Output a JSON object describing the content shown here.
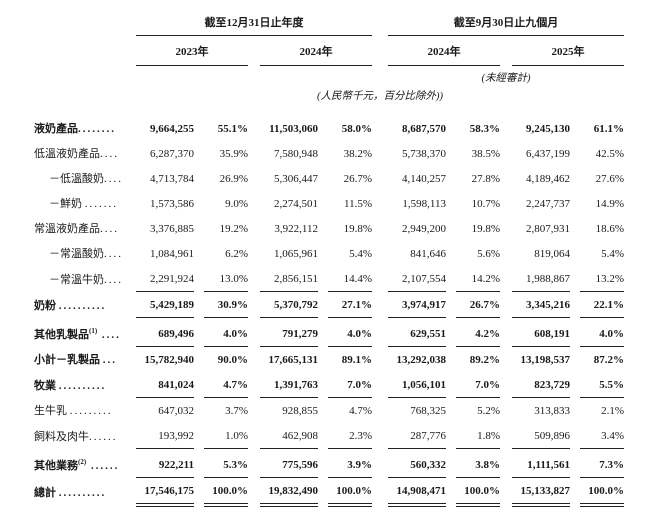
{
  "header": {
    "group1": "截至12月31日止年度",
    "group2": "截至9月30日止九個月",
    "years": [
      "2023年",
      "2024年",
      "2024年",
      "2025年"
    ],
    "note_unaudited": "(未經審計)",
    "note_units": "(人民幣千元，百分比除外))"
  },
  "rows": [
    {
      "label": "液奶產品",
      "dots": "........",
      "bold": true,
      "values": [
        "9,664,255",
        "55.1%",
        "11,503,060",
        "58.0%",
        "8,687,570",
        "58.3%",
        "9,245,130",
        "61.1%"
      ]
    },
    {
      "label": "低溫液奶產品",
      "dots": "....",
      "values": [
        "6,287,370",
        "35.9%",
        "7,580,948",
        "38.2%",
        "5,738,370",
        "38.5%",
        "6,437,199",
        "42.5%"
      ]
    },
    {
      "label": "－低溫酸奶",
      "dots": "....",
      "indent": true,
      "values": [
        "4,713,784",
        "26.9%",
        "5,306,447",
        "26.7%",
        "4,140,257",
        "27.8%",
        "4,189,462",
        "27.6%"
      ]
    },
    {
      "label": "－鮮奶 ",
      "dots": ".......",
      "indent": true,
      "values": [
        "1,573,586",
        "9.0%",
        "2,274,501",
        "11.5%",
        "1,598,113",
        "10.7%",
        "2,247,737",
        "14.9%"
      ]
    },
    {
      "label": "常溫液奶產品",
      "dots": "....",
      "values": [
        "3,376,885",
        "19.2%",
        "3,922,112",
        "19.8%",
        "2,949,200",
        "19.8%",
        "2,807,931",
        "18.6%"
      ]
    },
    {
      "label": "－常溫酸奶",
      "dots": "....",
      "indent": true,
      "values": [
        "1,084,961",
        "6.2%",
        "1,065,961",
        "5.4%",
        "841,646",
        "5.6%",
        "819,064",
        "5.4%"
      ]
    },
    {
      "label": "－常溫牛奶",
      "dots": "....",
      "indent": true,
      "rule": "single",
      "values": [
        "2,291,924",
        "13.0%",
        "2,856,151",
        "14.4%",
        "2,107,554",
        "14.2%",
        "1,988,867",
        "13.2%"
      ]
    },
    {
      "label": "奶粉 ",
      "dots": "..........",
      "bold": true,
      "rule": "single",
      "values": [
        "5,429,189",
        "30.9%",
        "5,370,792",
        "27.1%",
        "3,974,917",
        "26.7%",
        "3,345,216",
        "22.1%"
      ]
    },
    {
      "label": "其他乳製品",
      "sup": "(1)",
      "dots": " ....",
      "bold": true,
      "rule": "single",
      "values": [
        "689,496",
        "4.0%",
        "791,279",
        "4.0%",
        "629,551",
        "4.2%",
        "608,191",
        "4.0%"
      ]
    },
    {
      "label": "小計－乳製品 ",
      "dots": "...",
      "bold": true,
      "values": [
        "15,782,940",
        "90.0%",
        "17,665,131",
        "89.1%",
        "13,292,038",
        "89.2%",
        "13,198,537",
        "87.2%"
      ]
    },
    {
      "label": "牧業 ",
      "dots": "..........",
      "bold": true,
      "rule": "single",
      "values": [
        "841,024",
        "4.7%",
        "1,391,763",
        "7.0%",
        "1,056,101",
        "7.0%",
        "823,729",
        "5.5%"
      ]
    },
    {
      "label": "生牛乳 ",
      "dots": ".........",
      "values": [
        "647,032",
        "3.7%",
        "928,855",
        "4.7%",
        "768,325",
        "5.2%",
        "313,833",
        "2.1%"
      ]
    },
    {
      "label": "飼料及肉牛",
      "dots": "......",
      "rule": "single",
      "values": [
        "193,992",
        "1.0%",
        "462,908",
        "2.3%",
        "287,776",
        "1.8%",
        "509,896",
        "3.4%"
      ]
    },
    {
      "label": "其他業務",
      "sup": "(2)",
      "dots": " ......",
      "bold": true,
      "rule": "single",
      "values": [
        "922,211",
        "5.3%",
        "775,596",
        "3.9%",
        "560,332",
        "3.8%",
        "1,111,561",
        "7.3%"
      ]
    },
    {
      "label": "總計 ",
      "dots": "..........",
      "bold": true,
      "rule": "double",
      "values": [
        "17,546,175",
        "100.0%",
        "19,832,490",
        "100.0%",
        "14,908,471",
        "100.0%",
        "15,133,827",
        "100.0%"
      ]
    }
  ]
}
